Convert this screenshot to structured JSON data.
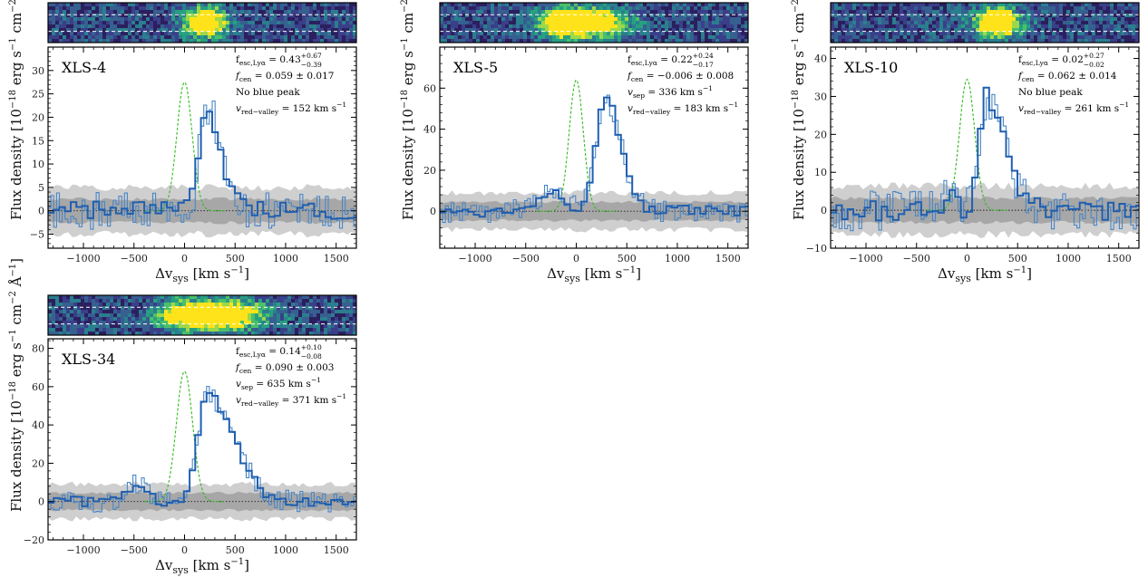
{
  "figure": {
    "xlabel_prefix": "Δv",
    "xlabel_sub": "sys",
    "xlabel_unit": " [km s",
    "xlabel_exp": "−1",
    "xlabel_end": "]",
    "ylabel_prefix": "Flux density [10",
    "ylabel_exp1": "−18",
    "ylabel_mid1": " erg s",
    "ylabel_exp2": "−1",
    "ylabel_mid2": " cm",
    "ylabel_exp3": "−2",
    "ylabel_mid3": " Å",
    "ylabel_exp4": "−1",
    "ylabel_end": "]"
  },
  "colors": {
    "spectrum_thin": "#4a86c6",
    "spectrum_thick": "#1f5fb0",
    "model": "#33bb1f",
    "noise_dark": "#a7a7a7",
    "noise_light": "#cfcfcf",
    "zero_line": "#222222",
    "stamp_bg": "#3a4c8c",
    "stamp_bright": "#ffe31a",
    "stamp_mid": "#2fb08a"
  },
  "chart_data": [
    {
      "type": "line",
      "name": "XLS-4",
      "annotations": [
        "f_esc,Lyα = 0.43 +0.67 −0.39",
        "f_cen = 0.059 ± 0.017",
        "No blue peak",
        "v_red−valley = 152 km s−1"
      ],
      "xlim": [
        -1350,
        1700
      ],
      "ylim": [
        -8,
        35
      ],
      "xticks": [
        "−1000",
        "−500",
        "0",
        "500",
        "1000",
        "1500"
      ],
      "yticks": [
        -5,
        0,
        5,
        10,
        15,
        20,
        25,
        30
      ],
      "noise_sigma": 2.5,
      "model_peak": 27.5,
      "model_width": 75,
      "features": [
        [
          220,
          22,
          70,
          140
        ]
      ],
      "noise_amp": 1.8,
      "stamp_blobs": [
        [
          0.51,
          0.5,
          0.045,
          1.0
        ]
      ]
    },
    {
      "type": "line",
      "name": "XLS-5",
      "annotations": [
        "f_esc,Lyα = 0.22 +0.24 −0.17",
        "f_cen = −0.006 ± 0.008",
        "v_sep = 336 km s−1",
        "v_red−valley = 183 km s−1"
      ],
      "xlim": [
        -1350,
        1700
      ],
      "ylim": [
        -18,
        80
      ],
      "xticks": [
        "−1000",
        "−500",
        "0",
        "500",
        "1000",
        "1500"
      ],
      "yticks": [
        0,
        20,
        40,
        60
      ],
      "noise_sigma": 4.5,
      "model_peak": 64,
      "model_width": 70,
      "features": [
        [
          280,
          55,
          90,
          160
        ],
        [
          -250,
          10,
          140,
          140
        ]
      ],
      "noise_amp": 2.5,
      "stamp_blobs": [
        [
          0.47,
          0.5,
          0.09,
          1.0
        ],
        [
          0.39,
          0.5,
          0.03,
          0.55
        ]
      ]
    },
    {
      "type": "line",
      "name": "XLS-10",
      "annotations": [
        "f_esc,Lyα = 0.02 +0.27 −0.02",
        "f_cen = 0.062 ± 0.014",
        "No blue peak",
        "v_red−valley = 261 km s−1"
      ],
      "xlim": [
        -1350,
        1700
      ],
      "ylim": [
        -10,
        43
      ],
      "xticks": [
        "−1000",
        "−500",
        "0",
        "500",
        "1000",
        "1500"
      ],
      "yticks": [
        -10,
        0,
        10,
        20,
        30,
        40
      ],
      "noise_sigma": 3.2,
      "model_peak": 34.5,
      "model_width": 75,
      "features": [
        [
          200,
          30,
          70,
          180
        ],
        [
          -170,
          4,
          60,
          60
        ]
      ],
      "noise_amp": 2.5,
      "stamp_blobs": [
        [
          0.54,
          0.5,
          0.05,
          1.0
        ]
      ]
    },
    {
      "type": "line",
      "name": "XLS-34",
      "annotations": [
        "f_esc,Lyα = 0.14 +0.10 −0.08",
        "f_cen = 0.090 ± 0.003",
        "v_sep = 635 km s−1",
        "v_red−valley = 371 km s−1"
      ],
      "xlim": [
        -1350,
        1700
      ],
      "ylim": [
        -20,
        85
      ],
      "xticks": [
        "−1000",
        "−500",
        "0",
        "500",
        "1000",
        "1500"
      ],
      "yticks": [
        -20,
        0,
        20,
        40,
        60,
        80
      ],
      "noise_sigma": 4.5,
      "model_peak": 68,
      "model_width": 80,
      "features": [
        [
          230,
          55,
          100,
          260
        ],
        [
          -480,
          9,
          110,
          110
        ]
      ],
      "noise_amp": 2.5,
      "stamp_blobs": [
        [
          0.55,
          0.5,
          0.1,
          1.0
        ],
        [
          0.42,
          0.5,
          0.05,
          0.35
        ]
      ]
    }
  ]
}
